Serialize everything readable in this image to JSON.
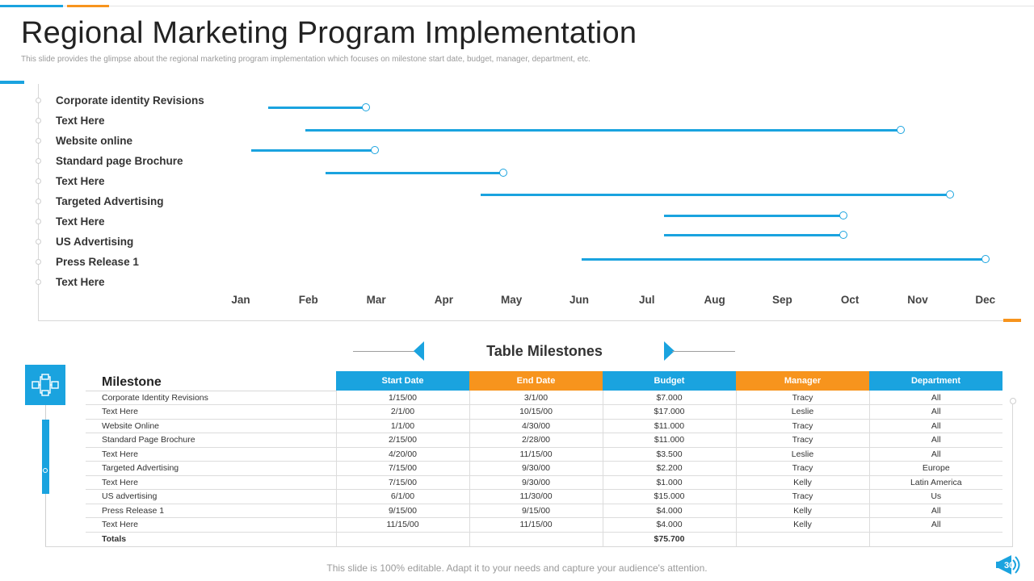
{
  "header": {
    "title": "Regional Marketing Program Implementation",
    "subtitle": "This slide provides the glimpse about the regional marketing program implementation  which focuses on milestone start date, budget, manager, department, etc."
  },
  "colors": {
    "accent_blue": "#1aa3df",
    "accent_orange": "#f7941d"
  },
  "gantt": {
    "tasks": [
      {
        "label": "Corporate identity Revisions",
        "start_month": 1.4,
        "end_month": 2.85
      },
      {
        "label": "Text Here",
        "start_month": 1.95,
        "end_month": 10.75
      },
      {
        "label": "Website online",
        "start_month": 1.15,
        "end_month": 2.98
      },
      {
        "label": "Standard page Brochure",
        "start_month": 2.25,
        "end_month": 4.88
      },
      {
        "label": "Text Here",
        "start_month": 4.55,
        "end_month": 11.48
      },
      {
        "label": "Targeted Advertising",
        "start_month": 7.25,
        "end_month": 9.9
      },
      {
        "label": "Text Here",
        "start_month": 7.25,
        "end_month": 9.9
      },
      {
        "label": "US Advertising",
        "start_month": 6.03,
        "end_month": 12.0
      },
      {
        "label": "Press  Release 1"
      },
      {
        "label": "Text Here"
      }
    ],
    "months": [
      "Jan",
      "Feb",
      "Mar",
      "Apr",
      "May",
      "Jun",
      "Jul",
      "Aug",
      "Sep",
      "Oct",
      "Nov",
      "Dec"
    ]
  },
  "table": {
    "title": "Table Milestones",
    "columns": [
      "Milestone",
      "Start Date",
      "End Date",
      "Budget",
      "Manager",
      "Department"
    ],
    "rows": [
      [
        "Corporate Identity Revisions",
        "1/15/00",
        "3/1/00",
        "$7.000",
        "Tracy",
        "All"
      ],
      [
        " Text Here",
        "2/1/00",
        "10/15/00",
        "$17.000",
        "Leslie",
        "All"
      ],
      [
        "Website Online",
        "1/1/00",
        "4/30/00",
        "$11.000",
        "Tracy",
        "All"
      ],
      [
        "Standard Page Brochure",
        "2/15/00",
        "2/28/00",
        "$11.000",
        "Tracy",
        "All"
      ],
      [
        "Text Here",
        "4/20/00",
        "11/15/00",
        "$3.500",
        "Leslie",
        "All"
      ],
      [
        "Targeted Advertising",
        "7/15/00",
        "9/30/00",
        "$2.200",
        "Tracy",
        "Europe"
      ],
      [
        "Text Here",
        "7/15/00",
        "9/30/00",
        "$1.000",
        "Kelly",
        "Latin America"
      ],
      [
        "US advertising",
        "6/1/00",
        "11/30/00",
        "$15.000",
        "Tracy",
        "Us"
      ],
      [
        "Press Release  1",
        "9/15/00",
        "9/15/00",
        "$4.000",
        "Kelly",
        "All"
      ],
      [
        "Text Here",
        "11/15/00",
        "11/15/00",
        "$4.000",
        "Kelly",
        "All"
      ]
    ],
    "totals_label": "Totals",
    "totals_budget": "$75.700"
  },
  "footer": {
    "text": "This slide is 100% editable. Adapt it to your needs and capture your audience's attention.",
    "page_number": "30"
  }
}
